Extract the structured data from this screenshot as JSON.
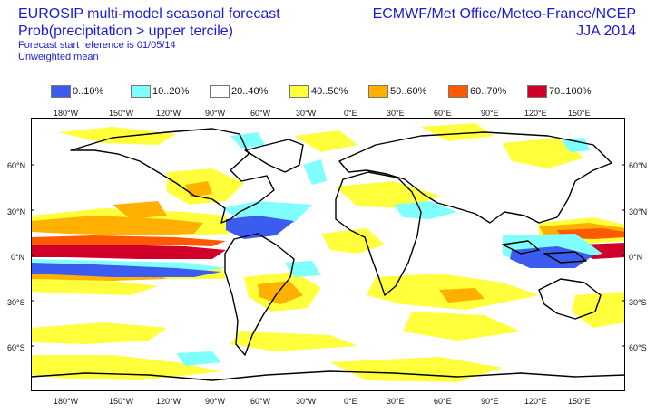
{
  "header": {
    "title_line1": "EUROSIP multi-model seasonal forecast",
    "title_line2": "Prob(precipitation > upper tercile)",
    "start_reference": "Forecast start reference is 01/05/14",
    "mean_type": "Unweighted mean",
    "centres": "ECMWF/Met Office/Meteo-France/NCEP",
    "season": "JJA 2014"
  },
  "legend": [
    {
      "label": "0..10%",
      "color": "#3c5cf0"
    },
    {
      "label": "10..20%",
      "color": "#7fffff"
    },
    {
      "label": "20..40%",
      "color": "#ffffff"
    },
    {
      "label": "40..50%",
      "color": "#ffff3c"
    },
    {
      "label": "50..60%",
      "color": "#ffb000"
    },
    {
      "label": "60..70%",
      "color": "#ff5a00"
    },
    {
      "label": "70..100%",
      "color": "#d0002a"
    }
  ],
  "axes": {
    "lon_labels": [
      "180°W",
      "150°W",
      "120°W",
      "90°W",
      "60°W",
      "30°W",
      "0°E",
      "30°E",
      "60°E",
      "90°E",
      "120°E",
      "150°E"
    ],
    "lat_labels": [
      "60°N",
      "30°N",
      "0°N",
      "30°S",
      "60°S"
    ]
  }
}
